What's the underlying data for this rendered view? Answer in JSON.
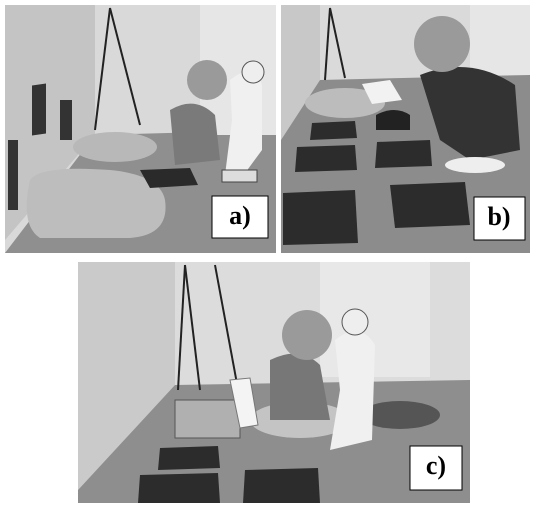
{
  "panels": [
    {
      "label": "a)"
    },
    {
      "label": "b)"
    },
    {
      "label": "c)"
    }
  ]
}
